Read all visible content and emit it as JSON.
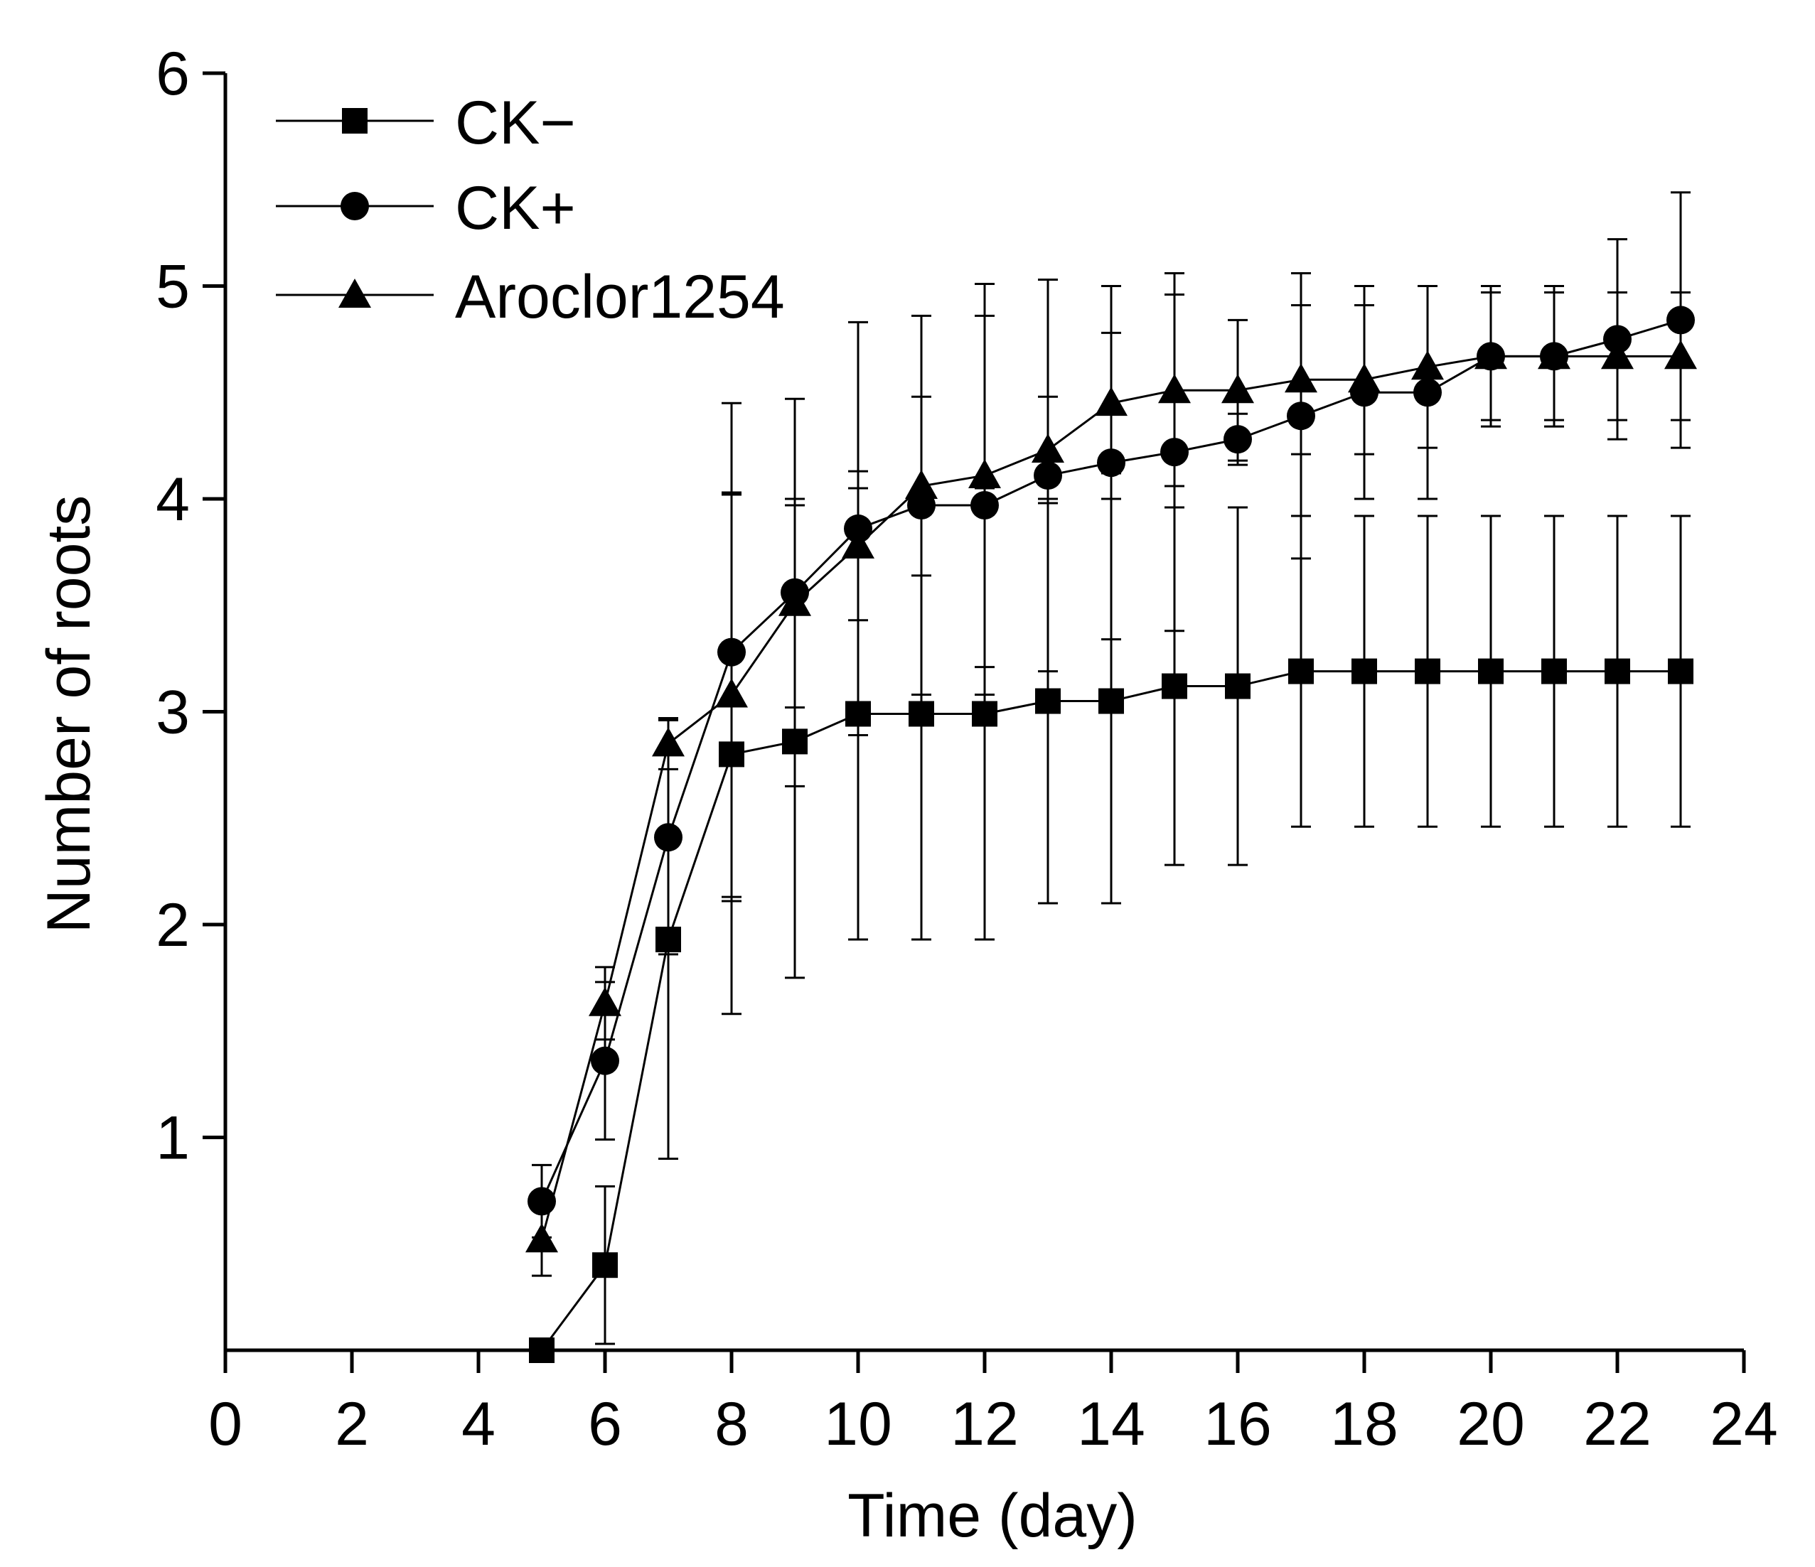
{
  "chart_data": {
    "type": "line",
    "title": "",
    "xlabel": "Time (day)",
    "ylabel": "Number of roots",
    "xlim": [
      0,
      24
    ],
    "ylim": [
      0,
      6
    ],
    "x_ticks": [
      "0",
      "2",
      "4",
      "6",
      "8",
      "10",
      "12",
      "14",
      "16",
      "18",
      "20",
      "22",
      "24"
    ],
    "y_ticks": [
      "1",
      "2",
      "3",
      "4",
      "5",
      "6"
    ],
    "grid": false,
    "legend_position": "top-left",
    "x": [
      5,
      6,
      7,
      8,
      9,
      10,
      11,
      12,
      13,
      14,
      15,
      16,
      17,
      18,
      19,
      20,
      21,
      22,
      23
    ],
    "series": [
      {
        "name": "CK−",
        "marker": "square",
        "values": [
          0.0,
          0.4,
          1.93,
          2.8,
          2.86,
          2.99,
          2.99,
          2.99,
          3.05,
          3.05,
          3.12,
          3.12,
          3.19,
          3.19,
          3.19,
          3.19,
          3.19,
          3.19,
          3.19
        ],
        "error": [
          0,
          0.37,
          1.03,
          1.22,
          1.11,
          1.06,
          1.06,
          1.06,
          0.95,
          0.95,
          0.84,
          0.84,
          0.73,
          0.73,
          0.73,
          0.73,
          0.73,
          0.73,
          0.73
        ]
      },
      {
        "name": "CK+",
        "marker": "circle",
        "values": [
          0.7,
          1.36,
          2.41,
          3.28,
          3.56,
          3.86,
          3.97,
          3.97,
          4.11,
          4.17,
          4.22,
          4.28,
          4.39,
          4.5,
          4.5,
          4.67,
          4.67,
          4.75,
          4.84
        ],
        "error": [
          0.17,
          0.37,
          0.55,
          1.17,
          0.91,
          0.97,
          0.89,
          0.89,
          0.92,
          0.83,
          0.84,
          0.12,
          0.67,
          0.5,
          0.5,
          0.33,
          0.33,
          0.47,
          0.6
        ]
      },
      {
        "name": "Aroclor1254",
        "marker": "triangle",
        "values": [
          0.52,
          1.63,
          2.85,
          3.08,
          3.51,
          3.78,
          4.06,
          4.11,
          4.23,
          4.45,
          4.51,
          4.51,
          4.56,
          4.56,
          4.62,
          4.67,
          4.67,
          4.67,
          4.67
        ],
        "error": [
          0.17,
          0.17,
          0.12,
          0.95,
          0.49,
          0.35,
          0.42,
          0.9,
          0.25,
          0.33,
          0.45,
          0.33,
          0.35,
          0.35,
          0.38,
          0.3,
          0.3,
          0.3,
          0.3
        ]
      }
    ]
  }
}
